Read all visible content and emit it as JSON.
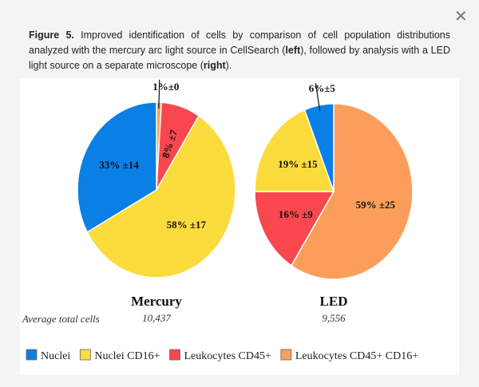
{
  "close_label": "✕",
  "caption": {
    "label": "Figure 5.",
    "parts": [
      " Improved identification of cells by comparison of cell population distributions analyzed with the mercury arc light source in CellSearch (",
      "left",
      "), followed by analysis with a LED light source on a separate microscope (",
      "right",
      ")."
    ]
  },
  "colors": {
    "Nuclei": "#0a7fe6",
    "Nuclei CD16+": "#fcdb3c",
    "Leukocytes CD45+": "#f9474f",
    "Leukocytes CD45+ CD16+": "#fb9e5c"
  },
  "chart_data": [
    {
      "type": "pie",
      "title": "Mercury",
      "slices": [
        {
          "name": "Leukocytes CD45+ CD16+",
          "value": 1,
          "label": "1%±0"
        },
        {
          "name": "Leukocytes CD45+",
          "value": 8,
          "label": "8% ±7"
        },
        {
          "name": "Nuclei CD16+",
          "value": 58,
          "label": "58% ±17"
        },
        {
          "name": "Nuclei",
          "value": 33,
          "label": "33% ±14"
        }
      ],
      "avg_total_cells": "10,437"
    },
    {
      "type": "pie",
      "title": "LED",
      "slices": [
        {
          "name": "Leukocytes CD45+ CD16+",
          "value": 59,
          "label": "59% ±25"
        },
        {
          "name": "Leukocytes CD45+",
          "value": 16,
          "label": "16% ±9"
        },
        {
          "name": "Nuclei CD16+",
          "value": 19,
          "label": "19% ±15"
        },
        {
          "name": "Nuclei",
          "value": 6,
          "label": "6%±5"
        }
      ],
      "avg_total_cells": "9,556"
    }
  ],
  "row_label": "Average total cells",
  "legend": [
    "Nuclei",
    "Nuclei CD16+",
    "Leukocytes CD45+",
    "Leukocytes CD45+ CD16+"
  ]
}
